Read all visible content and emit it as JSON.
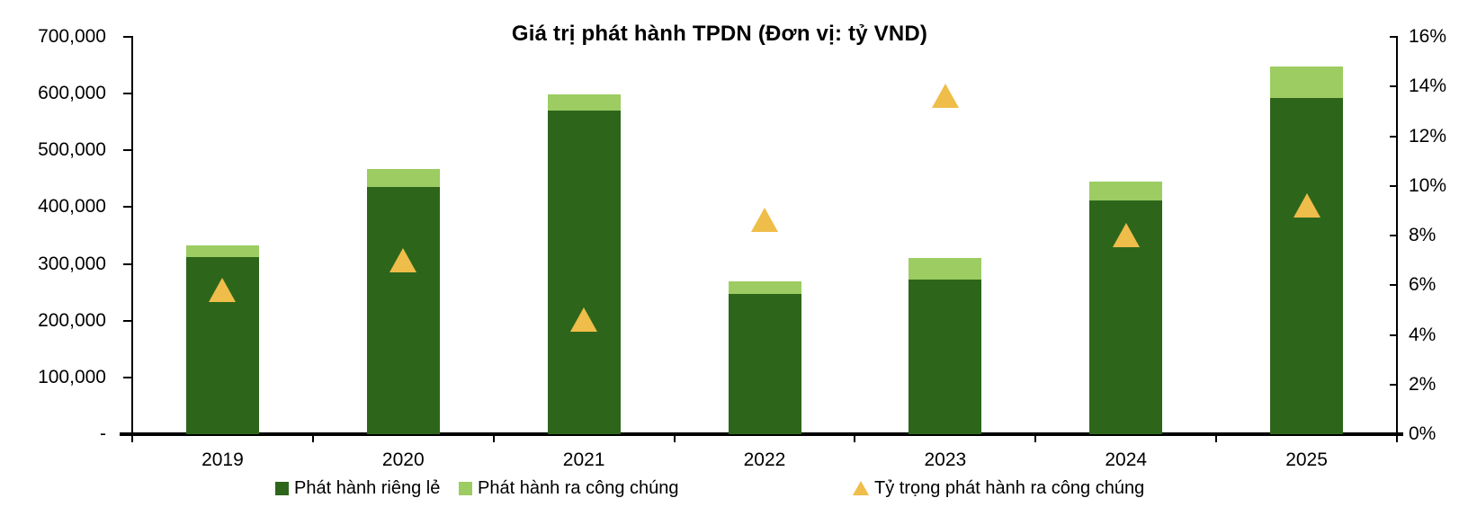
{
  "title": "Giá trị phát hành TPDN (Đơn vị: tỷ VND)",
  "colors": {
    "private": "#2D661B",
    "public": "#9CCC62",
    "ratio": "#EFBD49",
    "axis": "#000000",
    "text": "#000000",
    "background": "#FFFFFF"
  },
  "legend": {
    "items": [
      {
        "key": "private",
        "label": "Phát hành riêng lẻ",
        "marker": "square"
      },
      {
        "key": "public",
        "label": "Phát hành ra công chúng",
        "marker": "square"
      },
      {
        "key": "ratio",
        "label": "Tỷ trọng phát hành ra công chúng",
        "marker": "triangle"
      }
    ]
  },
  "chart_data": {
    "type": "bar",
    "subtype": "stacked-bars-with-triangle-markers",
    "title": "Giá trị phát hành TPDN (Đơn vị: tỷ VND)",
    "categories": [
      "2019",
      "2020",
      "2021",
      "2022",
      "2023",
      "2024",
      "2025"
    ],
    "series": [
      {
        "name": "Phát hành riêng lẻ",
        "type": "bar",
        "axis": "left",
        "color_key": "private",
        "values": [
          312000,
          435000,
          570000,
          247000,
          272000,
          411000,
          592000
        ]
      },
      {
        "name": "Phát hành ra công chúng",
        "type": "bar",
        "axis": "left",
        "color_key": "public",
        "values": [
          20000,
          32000,
          29000,
          22000,
          38000,
          34000,
          55000
        ]
      },
      {
        "name": "Tỷ trọng phát hành ra công chúng",
        "type": "triangle-marker",
        "axis": "right",
        "color_key": "ratio",
        "values_pct": [
          5.8,
          7.0,
          4.6,
          8.6,
          13.6,
          8.0,
          9.2
        ]
      }
    ],
    "left_axis": {
      "min": 0,
      "max": 700000,
      "step": 100000,
      "tick_labels": [
        "-",
        "100,000",
        "200,000",
        "300,000",
        "400,000",
        "500,000",
        "600,000",
        "700,000"
      ]
    },
    "right_axis": {
      "min": 0,
      "max": 16,
      "step": 2,
      "tick_labels": [
        "0%",
        "2%",
        "4%",
        "6%",
        "8%",
        "10%",
        "12%",
        "14%",
        "16%"
      ]
    },
    "layout_hints": {
      "grid": false,
      "legend_position": "bottom",
      "bar_gap_ratio": 0.6
    }
  }
}
